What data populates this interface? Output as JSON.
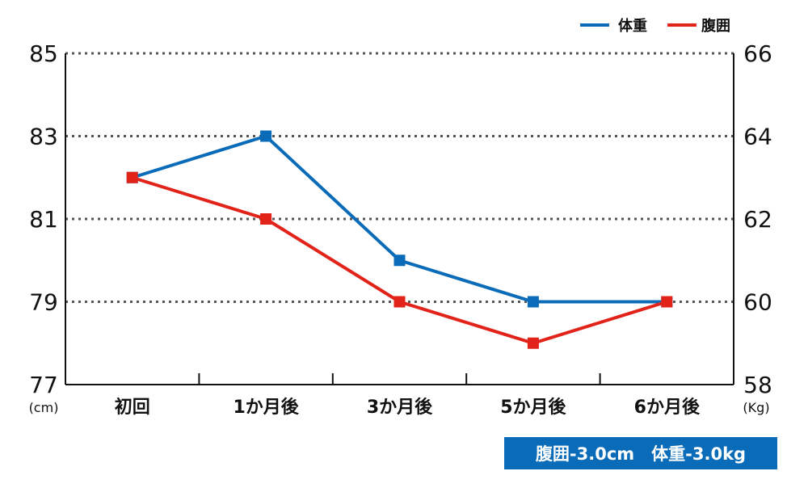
{
  "chart_data": {
    "type": "line",
    "categories": [
      "初回",
      "1か月後",
      "3か月後",
      "5か月後",
      "6か月後"
    ],
    "series": [
      {
        "name": "体重",
        "axis": "right",
        "color": "#0a6bb8",
        "values": [
          63.0,
          64.0,
          61.0,
          60.0,
          60.0
        ]
      },
      {
        "name": "腹囲",
        "axis": "left",
        "color": "#e2231a",
        "values": [
          82.0,
          81.0,
          79.0,
          78.0,
          79.0
        ]
      }
    ],
    "y_left": {
      "unit": "(cm)",
      "ylim": [
        77,
        85
      ],
      "ticks": [
        "85",
        "83",
        "81",
        "79",
        "77"
      ]
    },
    "y_right": {
      "unit": "(Kg)",
      "ylim": [
        58,
        66
      ],
      "ticks": [
        "66",
        "64",
        "62",
        "60",
        "58"
      ]
    },
    "grid": "dotted horizontal",
    "legend": {
      "placement": "top-right",
      "entries": [
        "体重",
        "腹囲"
      ]
    },
    "annotation": "腹囲-3.0cm　体重-3.0kg"
  }
}
